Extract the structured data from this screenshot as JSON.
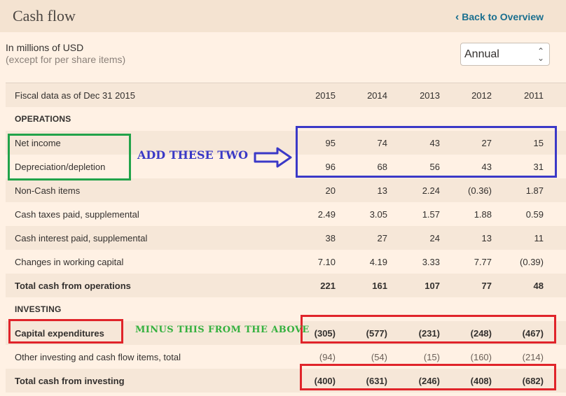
{
  "header": {
    "title": "Cash flow",
    "back_label": "Back to Overview",
    "back_icon": "chevron-left-icon"
  },
  "units": {
    "main": "In millions of USD",
    "sub": "(except for per share items)"
  },
  "period_select": {
    "value": "Annual"
  },
  "table": {
    "fiscal_label": "Fiscal data as of Dec 31 2015",
    "years": [
      "2015",
      "2014",
      "2013",
      "2012",
      "2011"
    ],
    "rows": [
      {
        "label": "OPERATIONS",
        "type": "section",
        "values": []
      },
      {
        "label": "Net income",
        "type": "normal",
        "values": [
          "95",
          "74",
          "43",
          "27",
          "15"
        ]
      },
      {
        "label": "Depreciation/depletion",
        "type": "normal",
        "values": [
          "96",
          "68",
          "56",
          "43",
          "31"
        ]
      },
      {
        "label": "Non-Cash items",
        "type": "normal",
        "values": [
          "20",
          "13",
          "2.24",
          "(0.36)",
          "1.87"
        ]
      },
      {
        "label": "Cash taxes paid, supplemental",
        "type": "normal",
        "values": [
          "2.49",
          "3.05",
          "1.57",
          "1.88",
          "0.59"
        ]
      },
      {
        "label": "Cash interest paid, supplemental",
        "type": "normal",
        "values": [
          "38",
          "27",
          "24",
          "13",
          "11"
        ]
      },
      {
        "label": "Changes in working capital",
        "type": "normal",
        "values": [
          "7.10",
          "4.19",
          "3.33",
          "7.77",
          "(0.39)"
        ]
      },
      {
        "label": "Total cash from operations",
        "type": "total",
        "values": [
          "221",
          "161",
          "107",
          "77",
          "48"
        ]
      },
      {
        "label": "INVESTING",
        "type": "section",
        "values": []
      },
      {
        "label": "Capital expenditures",
        "type": "total",
        "values": [
          "(305)",
          "(577)",
          "(231)",
          "(248)",
          "(467)"
        ]
      },
      {
        "label": "Other investing and cash flow items, total",
        "type": "normal",
        "values": [
          "(94)",
          "(54)",
          "(15)",
          "(160)",
          "(214)"
        ]
      },
      {
        "label": "Total cash from investing",
        "type": "total",
        "values": [
          "(400)",
          "(631)",
          "(246)",
          "(408)",
          "(682)"
        ]
      }
    ]
  },
  "annotations": {
    "add_text": "ADD THESE TWO",
    "minus_text": "MINUS THIS FROM THE ABOVE",
    "colors": {
      "green": "#22a34a",
      "blue": "#3b39c7",
      "red": "#e0242a"
    }
  }
}
